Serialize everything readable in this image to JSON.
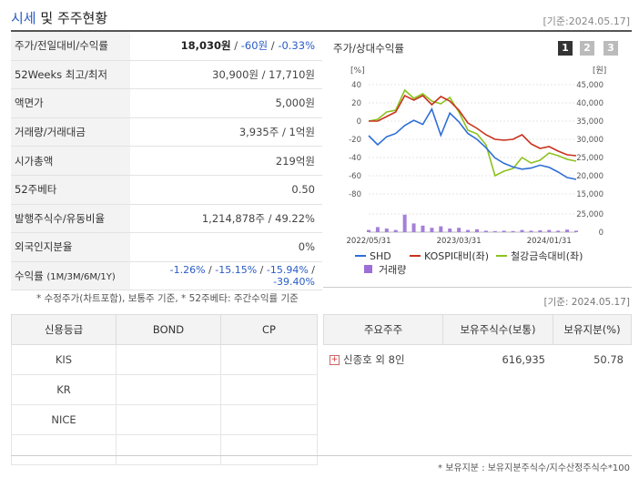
{
  "header": {
    "title_accent": "시세",
    "title_rest": " 및 주주현황",
    "date": "[기준:2024.05.17]"
  },
  "info_rows": [
    {
      "label": "주가/전일대비/수익률",
      "price": "18,030원",
      "sep1": " / ",
      "change": "-60원",
      "sep2": " / ",
      "rate": "-0.33%"
    },
    {
      "label": "52Weeks 최고/최저",
      "value": "30,900원 / 17,710원"
    },
    {
      "label": "액면가",
      "value": "5,000원"
    },
    {
      "label": "거래량/거래대금",
      "value": "3,935주 / 1억원"
    },
    {
      "label": "시가총액",
      "value": "219억원"
    },
    {
      "label": "52주베타",
      "value": "0.50"
    },
    {
      "label": "발행주식수/유동비율",
      "value": "1,214,878주 / 49.22%"
    },
    {
      "label": "외국인지분율",
      "value": "0%"
    },
    {
      "label": "수익률",
      "label_small": "(1M/3M/6M/1Y)",
      "r1": "-1.26%",
      "r2": "-15.15%",
      "r3": "-15.94%",
      "r4": "-39.40%",
      "sep": " / "
    }
  ],
  "note": "* 수정주가(차트포함), 보통주 기준, * 52주베타: 주간수익률 기준",
  "chart": {
    "title": "주가/상대수익률",
    "buttons": [
      "1",
      "2",
      "3"
    ],
    "left_unit": "[%]",
    "right_unit": "[원]",
    "left_ticks": [
      "40",
      "20",
      "0",
      "-20",
      "-40",
      "-60",
      "-80"
    ],
    "right_ticks": [
      "45,000",
      "40,000",
      "35,000",
      "30,000",
      "25,000",
      "20,000",
      "15,000"
    ],
    "vol_tick": "25,000",
    "vol_tick0": "0",
    "x_ticks": [
      "2022/05/31",
      "2023/03/31",
      "2024/01/31"
    ],
    "legend": [
      {
        "label": "SHD",
        "color": "#2f6fd6"
      },
      {
        "label": "KOSPI대비(좌)",
        "color": "#c8321e"
      },
      {
        "label": "철강금속대비(좌)",
        "color": "#8cc21e"
      },
      {
        "label": "거래량",
        "color": "#9b6fd6"
      }
    ],
    "colors": {
      "shd": "#2f6fd6",
      "kospi": "#c8321e",
      "steel": "#8cc21e",
      "volume": "#a47fd9"
    }
  },
  "chart_data": {
    "type": "line",
    "x": [
      "2022/05/31",
      "",
      "",
      "",
      "",
      "",
      "",
      "",
      "",
      "",
      "2023/03/31",
      "",
      "",
      "",
      "",
      "",
      "",
      "",
      "",
      "",
      "2024/01/31",
      "",
      "",
      ""
    ],
    "series": [
      {
        "name": "SHD",
        "axis": "right",
        "values": [
          31000,
          28500,
          30700,
          31600,
          33800,
          35200,
          34100,
          38300,
          31100,
          37200,
          34800,
          31600,
          30000,
          27700,
          24900,
          23400,
          22400,
          21800,
          22100,
          22900,
          22300,
          21000,
          19500,
          19000
        ]
      },
      {
        "name": "KOSPI대비(좌)",
        "axis": "left",
        "values": [
          0,
          0,
          5,
          10,
          28,
          23,
          28,
          18,
          27,
          22,
          12,
          -2,
          -8,
          -15,
          -20,
          -21,
          -20,
          -15,
          -25,
          -30,
          -28,
          -33,
          -37,
          -38
        ]
      },
      {
        "name": "철강금속대비(좌)",
        "axis": "left",
        "values": [
          0,
          2,
          10,
          12,
          34,
          25,
          30,
          22,
          19,
          26,
          10,
          -10,
          -14,
          -26,
          -60,
          -55,
          -52,
          -40,
          -46,
          -43,
          -35,
          -38,
          -42,
          -44
        ]
      },
      {
        "name": "거래량",
        "axis": "volume",
        "values": [
          3000,
          7000,
          5000,
          3000,
          24000,
          12000,
          9000,
          6000,
          8000,
          5000,
          6000,
          3000,
          4000,
          2000,
          1500,
          2000,
          1500,
          3000,
          2000,
          2500,
          3000,
          2000,
          3500,
          2000
        ]
      }
    ],
    "ylim_left": [
      -80,
      40
    ],
    "ylim_right": [
      15000,
      45000
    ],
    "ylim_volume": [
      0,
      25000
    ]
  },
  "date2": "[기준: 2024.05.17]",
  "credit": {
    "headers": [
      "신용등급",
      "BOND",
      "CP"
    ],
    "rows": [
      [
        "KIS",
        "",
        ""
      ],
      [
        "KR",
        "",
        ""
      ],
      [
        "NICE",
        "",
        ""
      ],
      [
        "",
        "",
        ""
      ]
    ]
  },
  "holders": {
    "headers": [
      "주요주주",
      "보유주식수(보통)",
      "보유지분(%)"
    ],
    "rows": [
      {
        "name": "신종호 외 8인",
        "shares": "616,935",
        "pct": "50.78"
      }
    ]
  },
  "footnote": "* 보유지분 : 보유지분주식수/지수산정주식수*100"
}
